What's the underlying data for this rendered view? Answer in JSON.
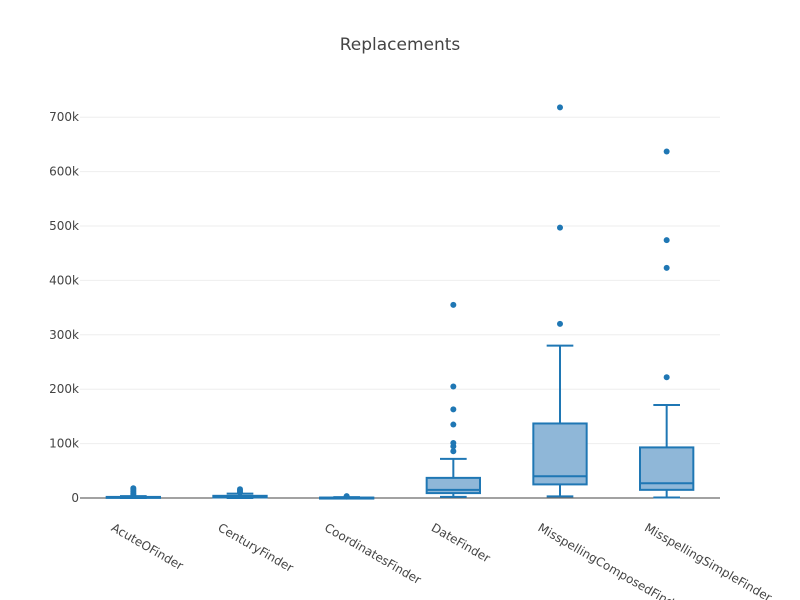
{
  "chart_data": {
    "type": "box",
    "title": "Replacements",
    "xlabel": "",
    "ylabel": "",
    "ylim": [
      0,
      750000
    ],
    "ytick_values": [
      0,
      100000,
      200000,
      300000,
      400000,
      500000,
      600000,
      700000
    ],
    "ytick_labels": [
      "0",
      "100k",
      "200k",
      "300k",
      "400k",
      "500k",
      "600k",
      "700k"
    ],
    "grid": true,
    "legend": "none",
    "colors": {
      "fill": "#8fb7d8",
      "stroke": "#1f77b4",
      "text": "#444444",
      "grid": "#eeeeee"
    },
    "categories": [
      "AcuteOFinder",
      "CenturyFinder",
      "CoordinatesFinder",
      "DateFinder",
      "MisspellingComposedFinder",
      "MisspellingSimpleFinder"
    ],
    "boxes": [
      {
        "name": "AcuteOFinder",
        "min": 0,
        "q1": 500,
        "median": 1000,
        "q3": 2000,
        "max": 3500,
        "outliers": [
          6000,
          9000,
          12000,
          15000,
          18000
        ]
      },
      {
        "name": "CenturyFinder",
        "min": 0,
        "q1": 1000,
        "median": 2500,
        "q3": 4000,
        "max": 8000,
        "outliers": [
          10000,
          13000,
          16000
        ]
      },
      {
        "name": "CoordinatesFinder",
        "min": 0,
        "q1": 200,
        "median": 400,
        "q3": 800,
        "max": 1500,
        "outliers": [
          2500,
          3500
        ]
      },
      {
        "name": "DateFinder",
        "min": 2000,
        "q1": 9000,
        "median": 15000,
        "q3": 37000,
        "max": 72000,
        "outliers": [
          86000,
          95000,
          101000,
          135000,
          163000,
          205000,
          355000
        ]
      },
      {
        "name": "MisspellingComposedFinder",
        "min": 3000,
        "q1": 25000,
        "median": 40000,
        "q3": 137000,
        "max": 280000,
        "outliers": [
          320000,
          497000,
          718000
        ]
      },
      {
        "name": "MisspellingSimpleFinder",
        "min": 1000,
        "q1": 15000,
        "median": 27000,
        "q3": 93000,
        "max": 171000,
        "outliers": [
          222000,
          423000,
          474000,
          637000
        ]
      }
    ]
  }
}
